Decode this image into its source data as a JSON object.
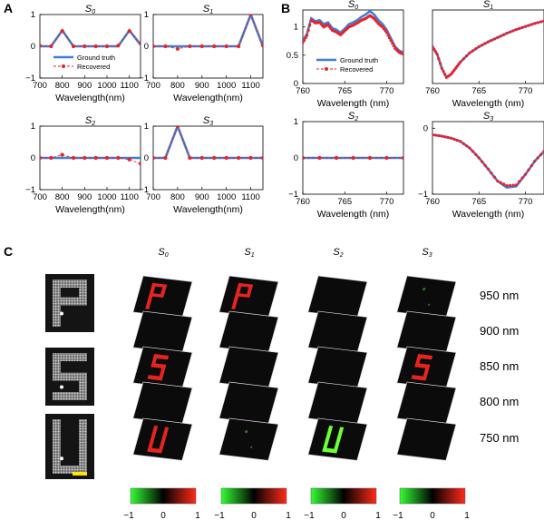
{
  "figure": {
    "panel_labels": [
      "A",
      "B",
      "C"
    ],
    "stokes_labels": [
      "S0",
      "S1",
      "S2",
      "S3"
    ],
    "legend": {
      "ground_truth": "Ground truth",
      "recovered": "Recovered"
    },
    "colors": {
      "ground_truth": "#3f7fd6",
      "recovered": "#e8222b"
    },
    "colorbar_ticks": [
      "−1",
      "0",
      "1"
    ],
    "colorbar_stops": [
      "#33ff33",
      "#000000",
      "#ff2a1a"
    ]
  },
  "chart_data": [
    {
      "panel": "A",
      "name": "S0",
      "type": "line",
      "title": "S0",
      "xlabel": "Wavelength(nm)",
      "ylabel": "",
      "xlim": [
        700,
        1150
      ],
      "ylim": [
        -1,
        1
      ],
      "xticks": [
        "700",
        "800",
        "900",
        "1000",
        "1100"
      ],
      "yticks": [
        "−1",
        "0",
        "1"
      ],
      "series": [
        {
          "name": "Ground truth",
          "x": [
            700,
            750,
            800,
            850,
            900,
            950,
            1000,
            1050,
            1100,
            1150
          ],
          "values": [
            0,
            0,
            0.5,
            0,
            0,
            0,
            0,
            0,
            0.5,
            0.05
          ]
        },
        {
          "name": "Recovered",
          "x": [
            700,
            750,
            800,
            850,
            900,
            950,
            1000,
            1050,
            1100,
            1150
          ],
          "values": [
            0.02,
            0,
            0.48,
            0,
            0,
            0,
            0,
            0.02,
            0.48,
            0.1
          ]
        }
      ],
      "legend": true
    },
    {
      "panel": "A",
      "name": "S1",
      "type": "line",
      "title": "S1",
      "xlabel": "Wavelength(nm)",
      "ylabel": "",
      "xlim": [
        700,
        1150
      ],
      "ylim": [
        -1,
        1
      ],
      "xticks": [
        "700",
        "800",
        "900",
        "1000",
        "1100"
      ],
      "yticks": [
        "−1",
        "0",
        "1"
      ],
      "series": [
        {
          "name": "Ground truth",
          "x": [
            700,
            750,
            800,
            850,
            900,
            950,
            1000,
            1050,
            1100,
            1150
          ],
          "values": [
            0,
            0,
            0,
            0,
            0,
            0,
            0,
            0,
            1,
            0
          ]
        },
        {
          "name": "Recovered",
          "x": [
            700,
            750,
            800,
            850,
            900,
            950,
            1000,
            1050,
            1100,
            1150
          ],
          "values": [
            0,
            0,
            -0.08,
            0,
            0,
            0,
            0,
            0,
            1,
            0.02
          ]
        }
      ]
    },
    {
      "panel": "A",
      "name": "S2",
      "type": "line",
      "title": "S2",
      "xlabel": "Wavelength(nm)",
      "ylabel": "",
      "xlim": [
        700,
        1150
      ],
      "ylim": [
        -1,
        1
      ],
      "xticks": [
        "700",
        "800",
        "900",
        "1000",
        "1100"
      ],
      "yticks": [
        "−1",
        "0",
        "1"
      ],
      "series": [
        {
          "name": "Ground truth",
          "x": [
            700,
            750,
            800,
            850,
            900,
            950,
            1000,
            1050,
            1100,
            1150
          ],
          "values": [
            0,
            0,
            0,
            0,
            0,
            0,
            0,
            0,
            0,
            0
          ]
        },
        {
          "name": "Recovered",
          "x": [
            700,
            750,
            800,
            850,
            900,
            950,
            1000,
            1050,
            1100,
            1150
          ],
          "values": [
            0,
            0,
            0.1,
            0,
            0,
            0,
            0,
            0,
            -0.05,
            -0.18
          ]
        }
      ]
    },
    {
      "panel": "A",
      "name": "S3",
      "type": "line",
      "title": "S3",
      "xlabel": "Wavelength(nm)",
      "ylabel": "",
      "xlim": [
        700,
        1150
      ],
      "ylim": [
        -1,
        1
      ],
      "xticks": [
        "700",
        "800",
        "900",
        "1000",
        "1100"
      ],
      "yticks": [
        "−1",
        "0",
        "1"
      ],
      "series": [
        {
          "name": "Ground truth",
          "x": [
            700,
            750,
            800,
            850,
            900,
            950,
            1000,
            1050,
            1100,
            1150
          ],
          "values": [
            0,
            0,
            1,
            0,
            0,
            0,
            0,
            0,
            0,
            0
          ]
        },
        {
          "name": "Recovered",
          "x": [
            700,
            750,
            800,
            850,
            900,
            950,
            1000,
            1050,
            1100,
            1150
          ],
          "values": [
            0,
            0,
            1,
            0,
            0,
            0,
            0,
            0,
            0,
            0
          ]
        }
      ]
    },
    {
      "panel": "B",
      "name": "S0",
      "type": "line",
      "title": "S0",
      "xlabel": "Wavelength (nm)",
      "ylabel": "",
      "xlim": [
        760,
        772
      ],
      "ylim": [
        0,
        1.3
      ],
      "xticks": [
        "760",
        "765",
        "770"
      ],
      "yticks": [
        "0",
        "0.5",
        "1"
      ],
      "series": [
        {
          "name": "Ground truth",
          "x": [
            760,
            760.5,
            761,
            761.5,
            762,
            762.5,
            763,
            763.5,
            764,
            764.5,
            765,
            765.5,
            766,
            766.5,
            767,
            767.5,
            768,
            768.5,
            769,
            769.5,
            770,
            770.5,
            771,
            771.5,
            772
          ],
          "values": [
            0.75,
            0.88,
            1.15,
            1.1,
            1.12,
            1.05,
            1.08,
            0.98,
            0.95,
            0.9,
            0.97,
            1.05,
            1.08,
            1.12,
            1.18,
            1.22,
            1.28,
            1.22,
            1.12,
            1.05,
            0.95,
            0.8,
            0.65,
            0.58,
            0.55
          ]
        },
        {
          "name": "Recovered",
          "x": [
            760,
            760.5,
            761,
            761.5,
            762,
            762.5,
            763,
            763.5,
            764,
            764.5,
            765,
            765.5,
            766,
            766.5,
            767,
            767.5,
            768,
            768.5,
            769,
            769.5,
            770,
            770.5,
            771,
            771.5,
            772
          ],
          "values": [
            0.72,
            0.85,
            1.12,
            1.07,
            1.08,
            1.0,
            1.04,
            0.94,
            0.91,
            0.86,
            0.93,
            1.0,
            1.03,
            1.07,
            1.12,
            1.15,
            1.2,
            1.15,
            1.06,
            1.0,
            0.9,
            0.76,
            0.62,
            0.55,
            0.52
          ]
        }
      ],
      "legend": true
    },
    {
      "panel": "B",
      "name": "S1",
      "type": "line",
      "title": "S1",
      "xlabel": "Wavelength (nm)",
      "ylabel": "",
      "xlim": [
        760,
        772
      ],
      "ylim": [
        -1.1,
        0.1
      ],
      "xticks": [
        "760",
        "765",
        "770"
      ],
      "yticks": [],
      "series": [
        {
          "name": "Ground truth",
          "x": [
            760,
            760.5,
            761,
            761.5,
            762,
            762.5,
            763,
            764,
            765,
            766,
            767,
            768,
            769,
            770,
            771,
            772
          ],
          "values": [
            -0.5,
            -0.62,
            -0.85,
            -1.0,
            -0.95,
            -0.85,
            -0.75,
            -0.6,
            -0.5,
            -0.42,
            -0.35,
            -0.28,
            -0.22,
            -0.17,
            -0.12,
            -0.08
          ]
        },
        {
          "name": "Recovered",
          "x": [
            760,
            760.5,
            761,
            761.5,
            762,
            762.5,
            763,
            764,
            765,
            766,
            767,
            768,
            769,
            770,
            771,
            772
          ],
          "values": [
            -0.5,
            -0.62,
            -0.85,
            -1.0,
            -0.95,
            -0.85,
            -0.75,
            -0.6,
            -0.5,
            -0.42,
            -0.35,
            -0.28,
            -0.22,
            -0.17,
            -0.12,
            -0.08
          ]
        }
      ]
    },
    {
      "panel": "B",
      "name": "S2",
      "type": "line",
      "title": "S2",
      "xlabel": "Wavelength (nm)",
      "ylabel": "",
      "xlim": [
        760,
        772
      ],
      "ylim": [
        -1,
        1
      ],
      "xticks": [
        "760",
        "765",
        "770"
      ],
      "yticks": [
        "−1",
        "0",
        "1"
      ],
      "series": [
        {
          "name": "Ground truth",
          "x": [
            760,
            762,
            764,
            766,
            768,
            770,
            772
          ],
          "values": [
            0,
            0,
            0,
            0,
            0,
            0,
            0
          ]
        },
        {
          "name": "Recovered",
          "x": [
            760,
            762,
            764,
            766,
            768,
            770,
            772
          ],
          "values": [
            0,
            0,
            0,
            0,
            0,
            0,
            0
          ]
        }
      ]
    },
    {
      "panel": "B",
      "name": "S3",
      "type": "line",
      "title": "S3",
      "xlabel": "Wavelength (nm)",
      "ylabel": "",
      "xlim": [
        760,
        772
      ],
      "ylim": [
        -1,
        0.1
      ],
      "xticks": [
        "760",
        "765",
        "770"
      ],
      "yticks": [
        "0",
        "−1"
      ],
      "series": [
        {
          "name": "Ground truth",
          "x": [
            760,
            761,
            762,
            763,
            764,
            765,
            766,
            767,
            768,
            769,
            770,
            771,
            772
          ],
          "values": [
            -0.1,
            -0.12,
            -0.15,
            -0.2,
            -0.3,
            -0.45,
            -0.62,
            -0.8,
            -0.9,
            -0.88,
            -0.7,
            -0.5,
            -0.35
          ]
        },
        {
          "name": "Recovered",
          "x": [
            760,
            761,
            762,
            763,
            764,
            765,
            766,
            767,
            768,
            769,
            770,
            771,
            772
          ],
          "values": [
            -0.1,
            -0.12,
            -0.15,
            -0.2,
            -0.3,
            -0.45,
            -0.62,
            -0.8,
            -0.87,
            -0.86,
            -0.7,
            -0.5,
            -0.35
          ]
        }
      ]
    }
  ],
  "panelC": {
    "columns": [
      "S0",
      "S1",
      "S2",
      "S3"
    ],
    "rows": [
      "950 nm",
      "900 nm",
      "850 nm",
      "800 nm",
      "750 nm"
    ],
    "sample_letters": [
      "P",
      "S",
      "U"
    ],
    "cells": [
      [
        "red-P",
        "red-P",
        "dark",
        "faint-green"
      ],
      [
        "dark",
        "dark",
        "dark",
        "dark"
      ],
      [
        "red-S",
        "dark",
        "dark",
        "red-S"
      ],
      [
        "dark",
        "dark",
        "dark",
        "dark"
      ],
      [
        "red-U",
        "faint-green",
        "green-U",
        "dark"
      ]
    ]
  }
}
